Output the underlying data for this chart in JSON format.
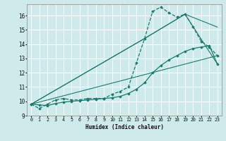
{
  "title": "",
  "xlabel": "Humidex (Indice chaleur)",
  "ylabel": "",
  "bg_color": "#ceeaea",
  "grid_color": "#ffffff",
  "line_color": "#1a7a6e",
  "xlim": [
    -0.5,
    23.5
  ],
  "ylim": [
    9.0,
    16.8
  ],
  "yticks": [
    9,
    10,
    11,
    12,
    13,
    14,
    15,
    16
  ],
  "xticks": [
    0,
    1,
    2,
    3,
    4,
    5,
    6,
    7,
    8,
    9,
    10,
    11,
    12,
    13,
    14,
    15,
    16,
    17,
    18,
    19,
    20,
    21,
    22,
    23
  ],
  "series": [
    {
      "x": [
        0,
        1,
        2,
        3,
        4,
        5,
        6,
        7,
        8,
        9,
        10,
        11,
        12,
        13,
        14,
        15,
        16,
        17,
        18,
        19,
        20,
        21,
        22,
        23
      ],
      "y": [
        9.8,
        9.5,
        9.8,
        10.1,
        10.2,
        10.1,
        10.1,
        10.2,
        10.2,
        10.2,
        10.5,
        10.7,
        11.0,
        12.7,
        14.4,
        16.3,
        16.6,
        16.2,
        15.9,
        16.1,
        15.2,
        14.2,
        13.8,
        13.2
      ],
      "marker": "D",
      "markersize": 1.8,
      "linewidth": 0.9,
      "linestyle": "--"
    },
    {
      "x": [
        0,
        1,
        2,
        3,
        4,
        5,
        6,
        7,
        8,
        9,
        10,
        11,
        12,
        13,
        14,
        15,
        16,
        17,
        18,
        19,
        20,
        21,
        22,
        23
      ],
      "y": [
        9.8,
        9.75,
        9.7,
        9.85,
        9.95,
        10.0,
        10.05,
        10.1,
        10.15,
        10.2,
        10.25,
        10.35,
        10.55,
        10.85,
        11.3,
        12.0,
        12.5,
        12.9,
        13.2,
        13.5,
        13.7,
        13.8,
        13.9,
        12.6
      ],
      "marker": "D",
      "markersize": 1.8,
      "linewidth": 0.9,
      "linestyle": "-"
    },
    {
      "x": [
        0,
        23
      ],
      "y": [
        9.8,
        13.2
      ],
      "marker": null,
      "markersize": 0,
      "linewidth": 0.8,
      "linestyle": "-"
    },
    {
      "x": [
        0,
        14,
        19,
        23
      ],
      "y": [
        9.8,
        14.4,
        16.1,
        15.2
      ],
      "marker": null,
      "markersize": 0,
      "linewidth": 0.8,
      "linestyle": "-"
    },
    {
      "x": [
        0,
        14,
        19,
        23
      ],
      "y": [
        9.8,
        14.4,
        16.1,
        12.6
      ],
      "marker": null,
      "markersize": 0,
      "linewidth": 0.8,
      "linestyle": "-"
    }
  ]
}
